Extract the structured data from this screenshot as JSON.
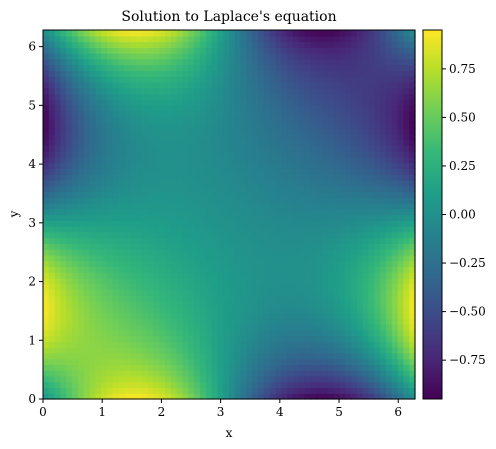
{
  "chart_data": {
    "type": "heatmap",
    "title": "Solution to Laplace's equation",
    "xlabel": "x",
    "ylabel": "y",
    "xlim": [
      0,
      6.283
    ],
    "ylim": [
      0,
      6.283
    ],
    "xticks": [
      "0",
      "1",
      "2",
      "3",
      "4",
      "5",
      "6"
    ],
    "yticks": [
      "0",
      "1",
      "2",
      "3",
      "4",
      "5",
      "6"
    ],
    "grid": false,
    "colormap": "viridis",
    "colorbar": {
      "range": [
        -0.95,
        0.95
      ],
      "ticks": [
        0.75,
        0.5,
        0.25,
        0.0,
        -0.25,
        -0.5,
        -0.75
      ],
      "tick_labels": [
        "0.75",
        "0.50",
        "0.25",
        "0.00",
        "−0.25",
        "−0.50",
        "−0.75"
      ]
    },
    "grid_resolution": 64,
    "field_values": {
      "corner_top_left": 0.05,
      "edge_left_y_1.6": 0.95,
      "edge_left_y_4.7": -0.9,
      "edge_right_y_1.6": 0.95,
      "edge_right_y_4.7": -0.9,
      "edge_bottom_x_1.6": 0.95,
      "edge_bottom_x_4.7": -0.95,
      "edge_top_x_1.6": 0.95,
      "edge_top_x_4.7": -0.9,
      "center": 0.0
    }
  },
  "colors": {
    "viridis": [
      "#440154",
      "#482878",
      "#3e4989",
      "#31688e",
      "#26828e",
      "#1f9e89",
      "#35b779",
      "#6ece58",
      "#b5de2b",
      "#fde725"
    ]
  }
}
